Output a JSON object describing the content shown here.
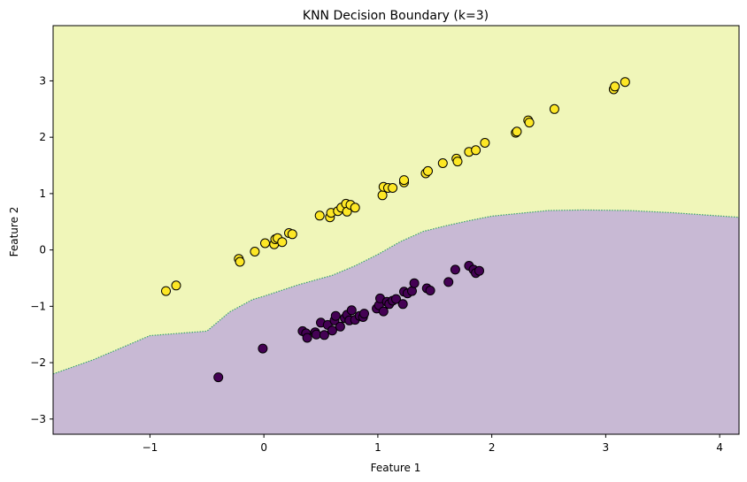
{
  "chart_data": {
    "type": "scatter",
    "title": "KNN Decision Boundary (k=3)",
    "xlabel": "Feature 1",
    "ylabel": "Feature 2",
    "xlim": [
      -1.85,
      4.17
    ],
    "ylim": [
      -3.27,
      3.98
    ],
    "xticks": [
      -1,
      0,
      1,
      2,
      3,
      4
    ],
    "yticks": [
      -3,
      -2,
      -1,
      0,
      1,
      2,
      3
    ],
    "grid": false,
    "colors": {
      "class_1": "#fde725",
      "class_0": "#440154",
      "region_1": "#f0f6b9",
      "region_0": "#c8b9d4",
      "boundary": "#3aa36b"
    },
    "decision_boundary": {
      "x": [
        -1.85,
        -1.5,
        -1.0,
        -0.5,
        -0.3,
        -0.1,
        0.0,
        0.3,
        0.6,
        0.8,
        1.0,
        1.2,
        1.4,
        1.6,
        1.8,
        2.0,
        2.2,
        2.5,
        2.8,
        3.2,
        3.6,
        4.17
      ],
      "y": [
        -2.2,
        -1.95,
        -1.52,
        -1.44,
        -1.1,
        -0.88,
        -0.82,
        -0.62,
        -0.45,
        -0.28,
        -0.08,
        0.15,
        0.33,
        0.43,
        0.52,
        0.6,
        0.64,
        0.7,
        0.71,
        0.7,
        0.66,
        0.58
      ]
    },
    "series": [
      {
        "class": 1,
        "x": [
          -0.86,
          -0.77,
          -0.22,
          -0.21,
          -0.08,
          0.01,
          0.09,
          0.1,
          0.12,
          0.16,
          0.22,
          0.25,
          0.49,
          0.58,
          0.59,
          0.65,
          0.68,
          0.72,
          0.73,
          0.76,
          0.8,
          1.04,
          1.05,
          1.09,
          1.13,
          1.23,
          1.23,
          1.42,
          1.44,
          1.57,
          1.69,
          1.7,
          1.8,
          1.86,
          1.94,
          2.21,
          2.22,
          2.32,
          2.33,
          2.55,
          3.07,
          3.08,
          3.17
        ],
        "y": [
          -0.73,
          -0.63,
          -0.16,
          -0.21,
          -0.03,
          0.12,
          0.1,
          0.19,
          0.21,
          0.14,
          0.3,
          0.28,
          0.61,
          0.58,
          0.66,
          0.69,
          0.75,
          0.82,
          0.68,
          0.8,
          0.75,
          0.97,
          1.12,
          1.1,
          1.1,
          1.2,
          1.24,
          1.36,
          1.4,
          1.54,
          1.62,
          1.57,
          1.74,
          1.77,
          1.9,
          2.08,
          2.1,
          2.3,
          2.26,
          2.5,
          2.85,
          2.9,
          2.98
        ]
      },
      {
        "class": 0,
        "x": [
          -0.4,
          -0.01,
          0.34,
          0.37,
          0.38,
          0.45,
          0.46,
          0.5,
          0.53,
          0.56,
          0.6,
          0.62,
          0.63,
          0.67,
          0.71,
          0.73,
          0.75,
          0.77,
          0.8,
          0.84,
          0.87,
          0.88,
          0.99,
          1.01,
          1.02,
          1.05,
          1.08,
          1.1,
          1.13,
          1.16,
          1.22,
          1.23,
          1.26,
          1.3,
          1.32,
          1.43,
          1.46,
          1.62,
          1.68,
          1.8,
          1.84,
          1.86,
          1.89
        ],
        "y": [
          -2.26,
          -1.75,
          -1.44,
          -1.48,
          -1.56,
          -1.46,
          -1.5,
          -1.29,
          -1.51,
          -1.33,
          -1.43,
          -1.25,
          -1.17,
          -1.36,
          -1.21,
          -1.15,
          -1.25,
          -1.07,
          -1.24,
          -1.17,
          -1.19,
          -1.13,
          -1.04,
          -0.98,
          -0.86,
          -1.09,
          -0.92,
          -0.96,
          -0.9,
          -0.87,
          -0.96,
          -0.74,
          -0.77,
          -0.73,
          -0.59,
          -0.68,
          -0.72,
          -0.57,
          -0.35,
          -0.28,
          -0.35,
          -0.41,
          -0.37
        ]
      }
    ]
  }
}
